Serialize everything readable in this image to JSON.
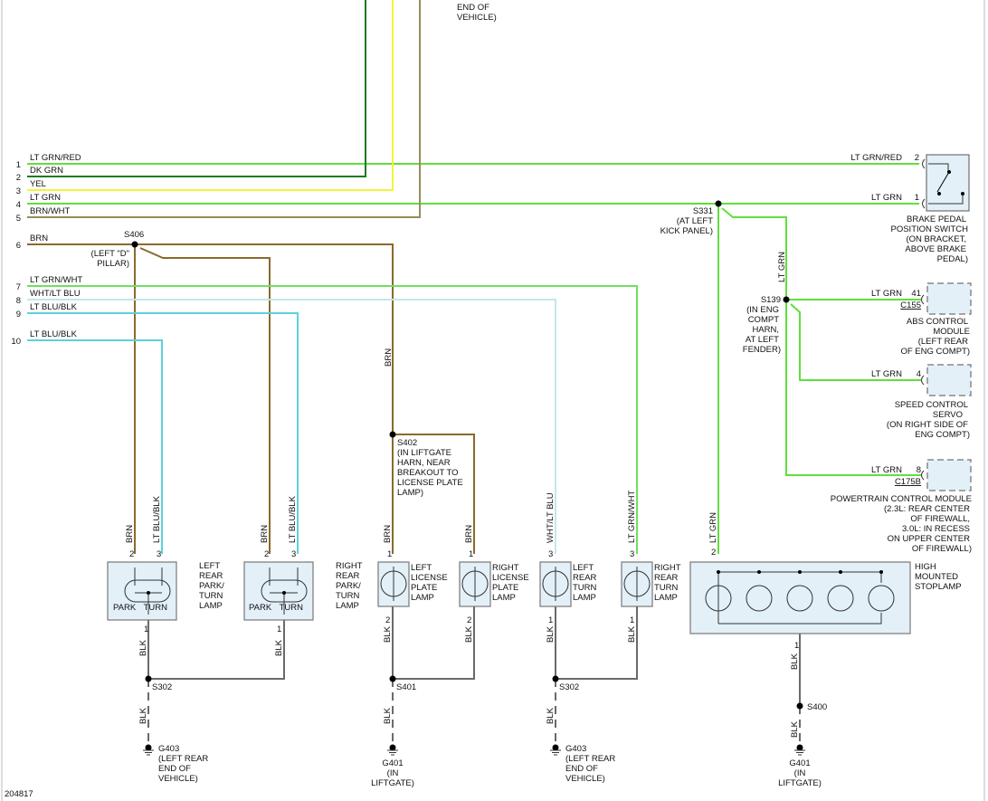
{
  "top_note": [
    "END OF",
    "VEHICLE)"
  ],
  "figure_id": "204817",
  "wires": [
    {
      "num": "1",
      "label": "LT GRN/RED",
      "color": "#5fe03c"
    },
    {
      "num": "2",
      "label": "DK GRN",
      "color": "#1f7a1f"
    },
    {
      "num": "3",
      "label": "YEL",
      "color": "#f4f43a"
    },
    {
      "num": "4",
      "label": "LT GRN",
      "color": "#5fe03c"
    },
    {
      "num": "5",
      "label": "BRN/WHT",
      "color": "#9b8a5c"
    },
    {
      "num": "6",
      "label": "BRN",
      "color": "#8a6a2c"
    },
    {
      "num": "7",
      "label": "LT GRN/WHT",
      "color": "#6fe060"
    },
    {
      "num": "8",
      "label": "WHT/LT BLU",
      "color": "#c4e6ec"
    },
    {
      "num": "9",
      "label": "LT BLU/BLK",
      "color": "#5ad2da"
    },
    {
      "num": "10",
      "label": "LT BLU/BLK",
      "color": "#5ad2da"
    }
  ],
  "colors": {
    "ground_wire": "#6a6a6a",
    "component_fill": "#e3f0f8"
  },
  "splices": {
    "s406": {
      "id": "S406",
      "loc": [
        "(LEFT \"D\"",
        "PILLAR)"
      ]
    },
    "s331": {
      "id": "S331",
      "loc": [
        "(AT LEFT",
        "KICK PANEL)"
      ]
    },
    "s139": {
      "id": "S139",
      "loc": [
        "(IN ENG",
        "COMPT",
        "HARN,",
        "AT LEFT",
        "FENDER)"
      ]
    },
    "s402": {
      "id": "S402",
      "loc": [
        "(IN LIFTGATE",
        "HARN, NEAR",
        "BREAKOUT TO",
        "LICENSE PLATE",
        "LAMP)"
      ]
    },
    "s302a": {
      "id": "S302"
    },
    "s401": {
      "id": "S401"
    },
    "s302b": {
      "id": "S302"
    },
    "s400": {
      "id": "S400"
    }
  },
  "grounds": {
    "g403a": {
      "id": "G403",
      "loc": [
        "(LEFT REAR",
        "END OF",
        "VEHICLE)"
      ]
    },
    "g401a": {
      "id": "G401",
      "loc": [
        "(IN",
        "LIFTGATE)"
      ]
    },
    "g403b": {
      "id": "G403",
      "loc": [
        "(LEFT REAR",
        "END OF",
        "VEHICLE)"
      ]
    },
    "g401b": {
      "id": "G401",
      "loc": [
        "(IN",
        "LIFTGATE)"
      ]
    }
  },
  "brake_switch": {
    "pin_a": "2",
    "wire_a": "LT GRN/RED",
    "pin_b": "1",
    "wire_b": "LT GRN",
    "name": [
      "BRAKE PEDAL",
      "POSITION SWITCH",
      "(ON BRACKET,",
      "ABOVE BRAKE",
      "PEDAL)"
    ]
  },
  "vertical_lt_grn": "LT GRN",
  "abs": {
    "wire": "LT GRN",
    "pin": "41",
    "connector": "C155",
    "name": [
      "ABS CONTROL",
      "MODULE",
      "(LEFT REAR",
      "OF ENG COMPT)"
    ]
  },
  "speed": {
    "wire": "LT GRN",
    "pin": "4",
    "name": [
      "SPEED CONTROL",
      "SERVO",
      "(ON RIGHT SIDE OF",
      "ENG COMPT)"
    ]
  },
  "pcm": {
    "wire": "LT GRN",
    "pin": "8",
    "connector": "C175B",
    "name": [
      "POWERTRAIN CONTROL MODULE",
      "(2.3L: REAR CENTER",
      "OF FIREWALL,",
      "3.0L: IN RECESS",
      "ON UPPER CENTER",
      "OF FIREWALL)"
    ]
  },
  "lamps": {
    "lrpt": {
      "name": [
        "LEFT",
        "REAR",
        "PARK/",
        "TURN",
        "LAMP"
      ],
      "pins": [
        "2",
        "3",
        "1"
      ],
      "wires": [
        "BRN",
        "LT BLU/BLK",
        "BLK"
      ],
      "park": "PARK",
      "turn": "TURN"
    },
    "rrpt": {
      "name": [
        "RIGHT",
        "REAR",
        "PARK/",
        "TURN",
        "LAMP"
      ],
      "pins": [
        "2",
        "3",
        "1"
      ],
      "wires": [
        "BRN",
        "LT BLU/BLK",
        "BLK"
      ],
      "park": "PARK",
      "turn": "TURN"
    },
    "llp": {
      "name": [
        "LEFT",
        "LICENSE",
        "PLATE",
        "LAMP"
      ],
      "pins": [
        "1",
        "2"
      ],
      "wires": [
        "BRN",
        "BLK"
      ]
    },
    "rlp": {
      "name": [
        "RIGHT",
        "LICENSE",
        "PLATE",
        "LAMP"
      ],
      "pins": [
        "1",
        "2"
      ],
      "wires": [
        "BRN",
        "BLK"
      ]
    },
    "lrt": {
      "name": [
        "LEFT",
        "REAR",
        "TURN",
        "LAMP"
      ],
      "pins": [
        "3",
        "1"
      ],
      "wires": [
        "WHT/LT BLU",
        "BLK"
      ]
    },
    "rrt": {
      "name": [
        "RIGHT",
        "REAR",
        "TURN",
        "LAMP"
      ],
      "pins": [
        "3",
        "1"
      ],
      "wires": [
        "LT GRN/WHT",
        "BLK"
      ]
    },
    "hmsl": {
      "name": [
        "HIGH",
        "MOUNTED",
        "STOPLAMP"
      ],
      "pins": [
        "2",
        "1"
      ],
      "wires": [
        "LT GRN",
        "BLK"
      ]
    }
  },
  "brn_vertical": "BRN",
  "blk": "BLK"
}
